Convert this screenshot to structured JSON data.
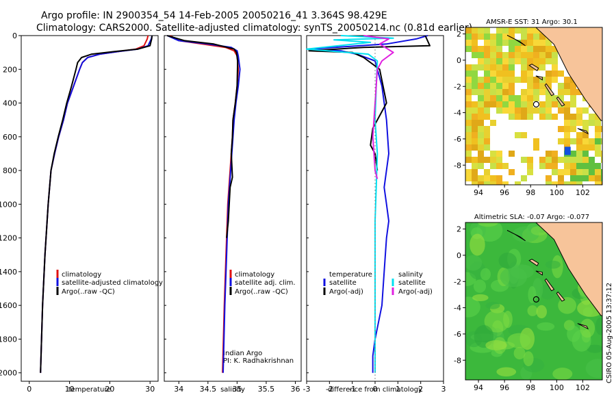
{
  "header": {
    "title_line1": "Argo profile: IN 2900354_54 14-Feb-2005 20050216_41 3.364S 98.429E",
    "title_line2": "Climatology: CARS2000. Satellite-adjusted climatology: synTS_20050214.nc (0.81d earlier)"
  },
  "colors": {
    "climatology": "#e01010",
    "satellite": "#1010e0",
    "argo": "#000000",
    "cyan": "#00e0f0",
    "magenta": "#e020e0",
    "land": "#f7c49a"
  },
  "chart_data": [
    {
      "type": "line",
      "id": "temperature",
      "xlabel": "temperature",
      "ylabel": "",
      "xlim": [
        -2,
        32
      ],
      "ylim": [
        2050,
        0
      ],
      "xticks": [
        0,
        10,
        20,
        30
      ],
      "yticks": [
        0,
        200,
        400,
        600,
        800,
        1000,
        1200,
        1400,
        1600,
        1800,
        2000
      ],
      "series": [
        {
          "name": "climatology",
          "color": "#e01010",
          "x": [
            29.5,
            29.3,
            28.5,
            26.5,
            22,
            17.5,
            14.5,
            13.2,
            12.5,
            11,
            9.5,
            8.5,
            7.3,
            6.3,
            5.4,
            4.7,
            3.9,
            3.3,
            2.8
          ],
          "y": [
            0,
            20,
            60,
            80,
            95,
            110,
            130,
            160,
            200,
            300,
            400,
            500,
            600,
            700,
            800,
            1000,
            1300,
            1600,
            2000
          ]
        },
        {
          "name": "satellite-adjusted climatology",
          "color": "#1010e0",
          "x": [
            30.5,
            30.3,
            29.5,
            27,
            22,
            17.5,
            14.5,
            13.2,
            12.5,
            11,
            9.5,
            8.5,
            7.3,
            6.3,
            5.4,
            4.7,
            3.9,
            3.3,
            2.8
          ],
          "y": [
            0,
            20,
            60,
            80,
            95,
            110,
            130,
            160,
            200,
            300,
            400,
            500,
            600,
            700,
            800,
            1000,
            1300,
            1600,
            2000
          ]
        },
        {
          "name": "Argo(..raw -QC)",
          "color": "#000000",
          "x": [
            30.5,
            30.4,
            30,
            27,
            21,
            15.5,
            13,
            12,
            11.6,
            10.5,
            9.3,
            8.3,
            7.2,
            6.2,
            5.4,
            4.7,
            3.9,
            3.3,
            2.8
          ],
          "y": [
            0,
            20,
            60,
            80,
            95,
            110,
            130,
            160,
            200,
            300,
            400,
            500,
            600,
            700,
            800,
            1000,
            1300,
            1600,
            2000
          ]
        }
      ],
      "legend": [
        "climatology",
        "satellite-adjusted climatology",
        "Argo(..raw -QC)"
      ],
      "legend_position": "lower-middle"
    },
    {
      "type": "line",
      "id": "salinity",
      "xlabel": "salinity",
      "xlim": [
        33.75,
        36.1
      ],
      "ylim": [
        2050,
        0
      ],
      "xticks": [
        34,
        34.5,
        35,
        35.5,
        36
      ],
      "series": [
        {
          "name": "climatology",
          "color": "#e01010",
          "x": [
            33.85,
            34.0,
            34.4,
            34.8,
            34.95,
            35.0,
            35.02,
            35.0,
            34.97,
            34.93,
            34.92,
            34.9,
            34.88,
            34.84,
            34.81,
            34.78,
            34.75
          ],
          "y": [
            0,
            30,
            50,
            70,
            90,
            120,
            200,
            300,
            400,
            500,
            600,
            700,
            800,
            1000,
            1300,
            1600,
            2000
          ]
        },
        {
          "name": "satellite adj. clim.",
          "color": "#1010e0",
          "x": [
            33.8,
            34.0,
            34.5,
            34.9,
            35.0,
            35.02,
            35.05,
            35.02,
            34.98,
            34.95,
            34.93,
            34.91,
            34.89,
            34.85,
            34.82,
            34.79,
            34.76
          ],
          "y": [
            0,
            30,
            50,
            70,
            90,
            120,
            200,
            300,
            400,
            500,
            600,
            700,
            800,
            1000,
            1300,
            1600,
            2000
          ]
        },
        {
          "name": "Argo(..raw -QC)",
          "color": "#000000",
          "x": [
            33.8,
            34.1,
            34.6,
            34.95,
            34.99,
            35.01,
            35.0,
            34.97,
            34.93,
            34.92,
            34.9,
            34.92,
            34.88,
            34.85,
            34.82
          ],
          "y": [
            0,
            30,
            50,
            80,
            100,
            150,
            300,
            400,
            500,
            600,
            700,
            840,
            900,
            1100,
            1200
          ]
        }
      ],
      "legend": [
        "climatology",
        "satellite adj. clim.",
        "Argo(..raw -QC)"
      ],
      "legend_position": "lower-middle",
      "annotation_line1": "Indian Argo",
      "annotation_line2": "PI: K. Radhakrishnan"
    },
    {
      "type": "line",
      "id": "difference",
      "xlabel": "difference from climatology",
      "xlim": [
        -3,
        3
      ],
      "ylim": [
        2050,
        0
      ],
      "xticks": [
        -3,
        -2,
        -1,
        0,
        1,
        2,
        3
      ],
      "series": [
        {
          "name": "temperature satellite",
          "color": "#1010e0",
          "x": [
            2.3,
            1.8,
            0.5,
            -2.9,
            -1.5,
            -0.8,
            0.0,
            0.3,
            0.5,
            0.6,
            0.4,
            0.5,
            0.6,
            0.5,
            0.4,
            0.3,
            0.0,
            -0.1,
            -0.1
          ],
          "y": [
            0,
            20,
            50,
            80,
            90,
            110,
            150,
            300,
            500,
            700,
            900,
            1000,
            1100,
            1200,
            1400,
            1600,
            1800,
            1900,
            2000
          ]
        },
        {
          "name": "temperature Argo(-adj)",
          "color": "#000000",
          "x": [
            2.2,
            2.4,
            -0.5,
            -2.9,
            -1.0,
            -0.5,
            0.2,
            0.5,
            0.3,
            -0.1,
            -0.2,
            0.0,
            0.1
          ],
          "y": [
            0,
            60,
            70,
            90,
            100,
            130,
            200,
            400,
            450,
            550,
            650,
            700,
            800
          ]
        },
        {
          "name": "salinity satellite",
          "color": "#00e0f0",
          "x": [
            -1.5,
            0.8,
            -1.8,
            -0.2,
            -3.0,
            -0.3,
            0.1,
            0.05,
            0.0,
            0.1,
            0.05,
            0.0,
            0.0,
            0.0,
            0.0,
            0.0
          ],
          "y": [
            0,
            15,
            25,
            40,
            80,
            110,
            150,
            300,
            500,
            700,
            900,
            1100,
            1300,
            1600,
            1800,
            2000
          ]
        },
        {
          "name": "salinity Argo(-adj)",
          "color": "#e020e0",
          "x": [
            -0.5,
            0.6,
            0.2,
            0.8,
            0.3,
            0.1,
            0.0,
            -0.1,
            0.0,
            0.1
          ],
          "y": [
            0,
            20,
            50,
            100,
            150,
            200,
            400,
            600,
            800,
            850
          ]
        }
      ],
      "legend_left_header": "temperature",
      "legend_right_header": "salinity",
      "legend_left": [
        "satellite",
        "Argo(-adj)"
      ],
      "legend_right": [
        "satellite",
        "Argo(-adj)"
      ]
    },
    {
      "type": "heatmap",
      "id": "sst_map",
      "title": "AMSR-E SST: 31  Argo: 30.1",
      "xlim": [
        93,
        103.5
      ],
      "ylim": [
        -9.5,
        2.5
      ],
      "xticks": [
        94,
        96,
        98,
        100,
        102
      ],
      "yticks": [
        2,
        0,
        -2,
        -4,
        -6,
        -8
      ],
      "float_lon": 98.429,
      "float_lat": -3.364
    },
    {
      "type": "heatmap",
      "id": "sla_map",
      "title": "Altimetric SLA: -0.07  Argo: -0.077",
      "xlim": [
        93,
        103.5
      ],
      "ylim": [
        -9.5,
        2.5
      ],
      "xticks": [
        94,
        96,
        98,
        100,
        102
      ],
      "yticks": [
        2,
        0,
        -2,
        -4,
        -6,
        -8
      ],
      "float_lon": 98.429,
      "float_lat": -3.364
    }
  ],
  "footer": {
    "stamp": "CSIRO 05-Aug-2005 13:37:12"
  }
}
